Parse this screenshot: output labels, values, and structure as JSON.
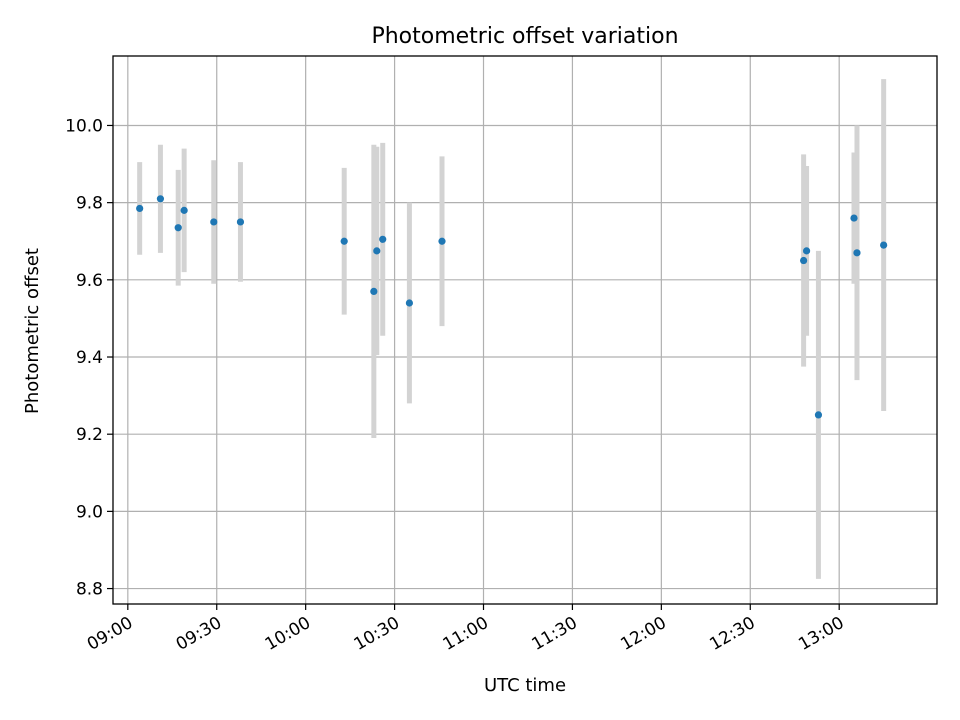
{
  "chart_data": {
    "type": "scatter",
    "title": "Photometric offset variation",
    "xlabel": "UTC time",
    "ylabel": "Photometric offset",
    "x_ticks": [
      "09:00",
      "09:30",
      "10:00",
      "10:30",
      "11:00",
      "11:30",
      "12:00",
      "12:30",
      "13:00"
    ],
    "y_ticks": [
      "8.8",
      "9.0",
      "9.2",
      "9.4",
      "9.6",
      "9.8",
      "10.0"
    ],
    "xlim": [
      "08:55",
      "13:33"
    ],
    "ylim": [
      8.76,
      10.18
    ],
    "grid": true,
    "colors": {
      "point": "#1f77b4",
      "errorbar": "#d3d3d3",
      "grid": "#b0b0b0"
    },
    "points": [
      {
        "x": "09:04",
        "y": 9.785,
        "yerr": 0.12
      },
      {
        "x": "09:11",
        "y": 9.81,
        "yerr": 0.14
      },
      {
        "x": "09:17",
        "y": 9.735,
        "yerr": 0.15
      },
      {
        "x": "09:19",
        "y": 9.78,
        "yerr": 0.16
      },
      {
        "x": "09:29",
        "y": 9.75,
        "yerr": 0.16
      },
      {
        "x": "09:38",
        "y": 9.75,
        "yerr": 0.155
      },
      {
        "x": "10:13",
        "y": 9.7,
        "yerr": 0.19
      },
      {
        "x": "10:23",
        "y": 9.57,
        "yerr": 0.38
      },
      {
        "x": "10:24",
        "y": 9.675,
        "yerr": 0.27
      },
      {
        "x": "10:26",
        "y": 9.705,
        "yerr": 0.25
      },
      {
        "x": "10:35",
        "y": 9.54,
        "yerr": 0.26
      },
      {
        "x": "10:46",
        "y": 9.7,
        "yerr": 0.22
      },
      {
        "x": "12:48",
        "y": 9.65,
        "yerr": 0.275
      },
      {
        "x": "12:49",
        "y": 9.675,
        "yerr": 0.22
      },
      {
        "x": "12:53",
        "y": 9.25,
        "yerr": 0.425
      },
      {
        "x": "13:05",
        "y": 9.76,
        "yerr": 0.17
      },
      {
        "x": "13:06",
        "y": 9.67,
        "yerr": 0.33
      },
      {
        "x": "13:15",
        "y": 9.69,
        "yerr": 0.43
      }
    ]
  }
}
